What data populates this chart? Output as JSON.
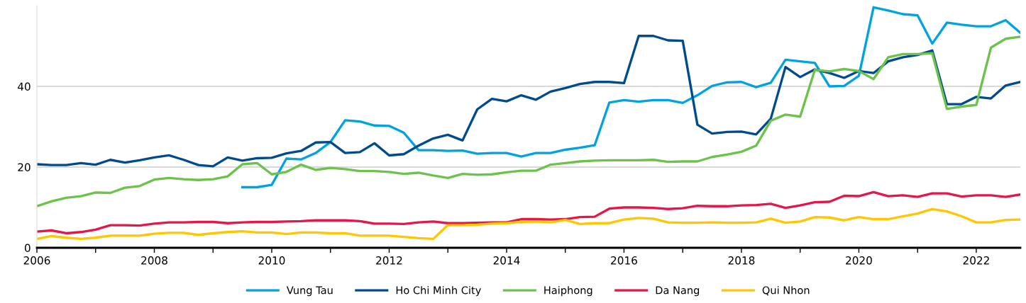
{
  "chart_data": {
    "type": "line",
    "xlim": [
      2006,
      2022.75
    ],
    "ylim": [
      0,
      60
    ],
    "xticks": [
      2006,
      {
        "value": 2007,
        "label": null
      },
      2008,
      {
        "value": 2009,
        "label": null
      },
      2010,
      {
        "value": 2011,
        "label": null
      },
      2012,
      {
        "value": 2013,
        "label": null
      },
      2014,
      {
        "value": 2015,
        "label": null
      },
      2016,
      {
        "value": 2017,
        "label": null
      },
      2018,
      {
        "value": 2019,
        "label": null
      },
      2020,
      {
        "value": 2021,
        "label": null
      },
      2022
    ],
    "yticks": [
      0,
      20,
      40
    ],
    "grid": "y",
    "legend": "bottom",
    "marker": "none",
    "line_style": "solid",
    "x": [
      2006,
      2006.25,
      2006.5,
      2006.75,
      2007,
      2007.25,
      2007.5,
      2007.75,
      2008,
      2008.25,
      2008.5,
      2008.75,
      2009,
      2009.25,
      2009.5,
      2009.75,
      2010,
      2010.25,
      2010.5,
      2010.75,
      2011,
      2011.25,
      2011.5,
      2011.75,
      2012,
      2012.25,
      2012.5,
      2012.75,
      2013,
      2013.25,
      2013.5,
      2013.75,
      2014,
      2014.25,
      2014.5,
      2014.75,
      2015,
      2015.25,
      2015.5,
      2015.75,
      2016,
      2016.25,
      2016.5,
      2016.75,
      2017,
      2017.25,
      2017.5,
      2017.75,
      2018,
      2018.25,
      2018.5,
      2018.75,
      2019,
      2019.25,
      2019.5,
      2019.75,
      2020,
      2020.25,
      2020.5,
      2020.75,
      2021,
      2021.25,
      2021.5,
      2021.75,
      2022,
      2022.25,
      2022.5,
      2022.75
    ],
    "series": [
      {
        "name": "Vung Tau",
        "color": "#00a3e0",
        "values": [
          null,
          null,
          null,
          null,
          null,
          null,
          null,
          null,
          null,
          null,
          null,
          null,
          null,
          null,
          15.0,
          15.0,
          15.6,
          22.1,
          21.9,
          23.5,
          26.2,
          31.6,
          31.3,
          30.3,
          30.2,
          28.5,
          24.2,
          24.2,
          24.0,
          24.1,
          23.3,
          23.5,
          23.5,
          22.6,
          23.5,
          23.5,
          24.3,
          24.8,
          25.4,
          36.0,
          36.6,
          36.2,
          36.6,
          36.6,
          35.9,
          37.8,
          40.1,
          41.0,
          41.1,
          39.8,
          40.9,
          46.6,
          46.2,
          45.8,
          40.0,
          40.1,
          42.6,
          59.6,
          58.8,
          57.9,
          57.6,
          50.6,
          55.8,
          55.3,
          54.9,
          54.9,
          56.4,
          53.3
        ]
      },
      {
        "name": "Ho Chi Minh City",
        "color": "#004b8d",
        "values": [
          20.7,
          20.5,
          20.5,
          21.0,
          20.6,
          21.8,
          21.1,
          21.7,
          22.4,
          22.9,
          21.8,
          20.5,
          20.2,
          22.4,
          21.6,
          22.2,
          22.3,
          23.4,
          24.0,
          26.1,
          26.2,
          23.5,
          23.7,
          25.9,
          22.9,
          23.2,
          25.3,
          27.1,
          28.0,
          26.6,
          34.3,
          36.9,
          36.3,
          37.8,
          36.7,
          38.7,
          39.6,
          40.6,
          41.1,
          41.1,
          40.8,
          52.5,
          52.5,
          51.4,
          51.3,
          30.5,
          28.3,
          28.7,
          28.8,
          28.1,
          32.0,
          44.8,
          42.3,
          44.2,
          43.3,
          42.1,
          43.8,
          43.3,
          46.2,
          47.2,
          47.8,
          48.9,
          35.6,
          35.6,
          37.4,
          37.0,
          40.2,
          41.1
        ]
      },
      {
        "name": "Haiphong",
        "color": "#6cc24a",
        "values": [
          10.3,
          11.5,
          12.4,
          12.8,
          13.7,
          13.6,
          14.9,
          15.3,
          16.9,
          17.3,
          17.0,
          16.8,
          17.0,
          17.7,
          20.7,
          21.0,
          18.2,
          18.8,
          20.6,
          19.3,
          19.8,
          19.5,
          19.0,
          19.0,
          18.8,
          18.3,
          18.6,
          17.9,
          17.3,
          18.3,
          18.1,
          18.2,
          18.7,
          19.1,
          19.1,
          20.6,
          21.0,
          21.4,
          21.6,
          21.7,
          21.7,
          21.7,
          21.8,
          21.3,
          21.4,
          21.4,
          22.5,
          23.1,
          23.8,
          25.3,
          31.5,
          33.0,
          32.5,
          44.1,
          43.7,
          44.3,
          43.8,
          41.8,
          47.2,
          48.0,
          48.0,
          48.2,
          34.4,
          35.0,
          35.4,
          49.6,
          51.8,
          52.3
        ]
      },
      {
        "name": "Da Nang",
        "color": "#e4174b",
        "values": [
          4.0,
          4.3,
          3.6,
          3.9,
          4.5,
          5.6,
          5.6,
          5.5,
          6.0,
          6.3,
          6.3,
          6.4,
          6.4,
          6.1,
          6.3,
          6.4,
          6.4,
          6.5,
          6.6,
          6.8,
          6.8,
          6.8,
          6.6,
          6.0,
          6.0,
          5.9,
          6.3,
          6.5,
          6.1,
          6.1,
          6.2,
          6.3,
          6.3,
          7.1,
          7.1,
          7.0,
          7.1,
          7.6,
          7.7,
          9.7,
          10.0,
          10.0,
          9.9,
          9.6,
          9.8,
          10.4,
          10.3,
          10.3,
          10.5,
          10.6,
          10.9,
          9.9,
          10.5,
          11.3,
          11.4,
          12.9,
          12.8,
          13.8,
          12.8,
          13.0,
          12.6,
          13.5,
          13.5,
          12.7,
          13.0,
          13.0,
          12.6,
          13.2
        ]
      },
      {
        "name": "Qui Nhon",
        "color": "#ffc700",
        "values": [
          2.2,
          2.9,
          2.5,
          2.2,
          2.5,
          3.0,
          3.0,
          3.0,
          3.5,
          3.7,
          3.7,
          3.2,
          3.6,
          3.9,
          4.1,
          3.8,
          3.8,
          3.4,
          3.8,
          3.8,
          3.6,
          3.6,
          3.0,
          3.0,
          3.0,
          2.7,
          2.4,
          2.2,
          5.6,
          5.6,
          5.7,
          6.0,
          6.1,
          6.4,
          6.5,
          6.3,
          6.9,
          5.9,
          6.1,
          6.1,
          7.0,
          7.4,
          7.2,
          6.3,
          6.2,
          6.2,
          6.3,
          6.2,
          6.2,
          6.3,
          7.2,
          6.2,
          6.5,
          7.6,
          7.5,
          6.8,
          7.6,
          7.1,
          7.1,
          7.8,
          8.5,
          9.6,
          9.0,
          7.8,
          6.3,
          6.3,
          6.9,
          7.0
        ]
      }
    ]
  }
}
